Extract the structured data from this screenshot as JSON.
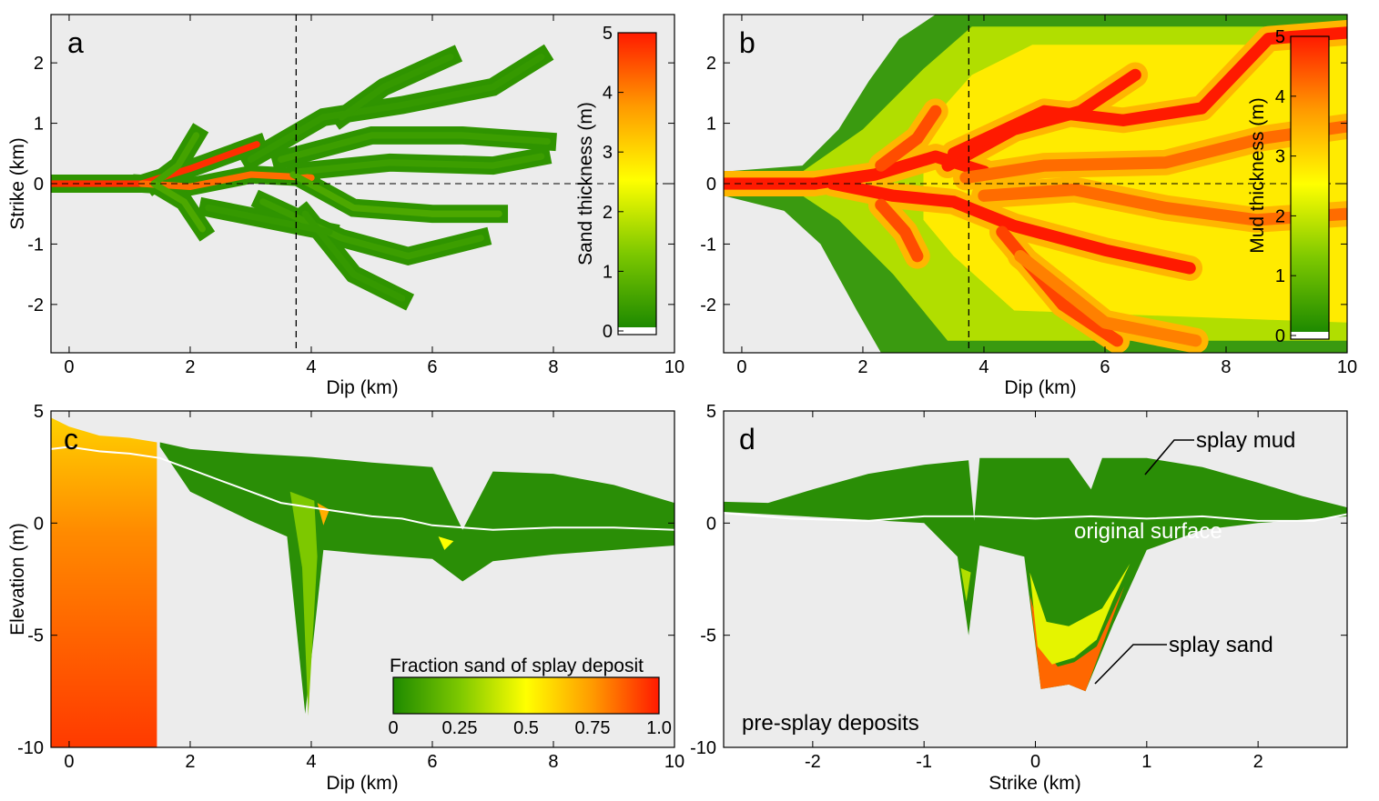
{
  "colors": {
    "background": "#ececec",
    "low": "#1e8a00",
    "mid": "#ffff00",
    "high": "#ff1a00",
    "surface_line": "#ffffff"
  },
  "chart_data": [
    {
      "type": "heatmap",
      "panel_label": "a",
      "xlabel": "Dip (km)",
      "ylabel": "Strike (km)",
      "xlim": [
        -0.3,
        10
      ],
      "ylim": [
        -2.8,
        2.8
      ],
      "xticks": [
        0,
        2,
        4,
        6,
        8,
        10
      ],
      "yticks": [
        -2,
        -1,
        0,
        1,
        2
      ],
      "colorbar": {
        "label": "Sand thickness (m)",
        "range": [
          0,
          5
        ],
        "ticks": [
          0,
          1,
          2,
          3,
          4,
          5
        ]
      },
      "crosshair": {
        "x": 3.75,
        "y": 0
      },
      "channels": [
        {
          "pts": [
            [
              -0.3,
              0
            ],
            [
              1.2,
              0
            ],
            [
              2,
              0.25
            ],
            [
              3.1,
              0.65
            ]
          ],
          "value": 4.8
        },
        {
          "pts": [
            [
              1.2,
              0
            ],
            [
              2,
              -0.05
            ],
            [
              3,
              0.15
            ],
            [
              4,
              0.1
            ]
          ],
          "value": 4.2
        },
        {
          "pts": [
            [
              1.4,
              0
            ],
            [
              1.8,
              0.3
            ],
            [
              2.1,
              0.8
            ]
          ],
          "value": 0.5
        },
        {
          "pts": [
            [
              1.4,
              0
            ],
            [
              1.9,
              -0.3
            ],
            [
              2.2,
              -0.75
            ]
          ],
          "value": 0.6
        },
        {
          "pts": [
            [
              3,
              0.4
            ],
            [
              4.2,
              1.1
            ],
            [
              5.5,
              1.3
            ],
            [
              7,
              1.6
            ],
            [
              7.8,
              2.1
            ]
          ],
          "value": 0.3
        },
        {
          "pts": [
            [
              4.5,
              1.1
            ],
            [
              5.2,
              1.6
            ],
            [
              6.3,
              2.1
            ]
          ],
          "value": 0.3
        },
        {
          "pts": [
            [
              3.5,
              0.4
            ],
            [
              5,
              0.8
            ],
            [
              6.5,
              0.8
            ],
            [
              7.9,
              0.7
            ]
          ],
          "value": 0.4
        },
        {
          "pts": [
            [
              3.8,
              0.2
            ],
            [
              5.3,
              0.35
            ],
            [
              7,
              0.3
            ],
            [
              7.8,
              0.45
            ]
          ],
          "value": 0.4
        },
        {
          "pts": [
            [
              3.7,
              0.15
            ],
            [
              4.7,
              -0.4
            ],
            [
              6,
              -0.5
            ],
            [
              7.1,
              -0.5
            ]
          ],
          "value": 0.6
        },
        {
          "pts": [
            [
              3.2,
              -0.3
            ],
            [
              4.5,
              -0.9
            ],
            [
              5.6,
              -1.2
            ],
            [
              6.8,
              -0.9
            ]
          ],
          "value": 0.4
        },
        {
          "pts": [
            [
              3.9,
              -0.5
            ],
            [
              4.7,
              -1.5
            ],
            [
              5.5,
              -1.9
            ]
          ],
          "value": 0.3
        },
        {
          "pts": [
            [
              2.3,
              -0.4
            ],
            [
              3.3,
              -0.6
            ],
            [
              4.3,
              -0.8
            ]
          ],
          "value": 0.3
        }
      ]
    },
    {
      "type": "heatmap",
      "panel_label": "b",
      "xlabel": "Dip (km)",
      "ylabel": "",
      "xlim": [
        -0.3,
        10
      ],
      "ylim": [
        -2.8,
        2.8
      ],
      "xticks": [
        0,
        2,
        4,
        6,
        8,
        10
      ],
      "yticks": [
        -2,
        -1,
        0,
        1,
        2
      ],
      "colorbar": {
        "label": "Mud thickness (m)",
        "range": [
          0,
          5
        ],
        "ticks": [
          0,
          1,
          2,
          3,
          4,
          5
        ]
      },
      "crosshair": {
        "x": 3.75,
        "y": 0
      },
      "channels": [
        {
          "pts": [
            [
              -0.3,
              0
            ],
            [
              1.2,
              0
            ],
            [
              2.2,
              0.15
            ],
            [
              3.2,
              0.45
            ],
            [
              4,
              0.2
            ]
          ],
          "value": 5
        },
        {
          "pts": [
            [
              1.5,
              0
            ],
            [
              2.5,
              -0.2
            ],
            [
              3.5,
              -0.3
            ],
            [
              4.5,
              -0.7
            ],
            [
              6,
              -1.1
            ],
            [
              7.4,
              -1.4
            ]
          ],
          "value": 5
        },
        {
          "pts": [
            [
              3.4,
              0.3
            ],
            [
              4.5,
              0.9
            ],
            [
              5.6,
              1.2
            ],
            [
              6.5,
              1.8
            ]
          ],
          "value": 5
        },
        {
          "pts": [
            [
              3.5,
              0.5
            ],
            [
              5,
              1.2
            ],
            [
              6.3,
              1.05
            ],
            [
              7.6,
              1.25
            ],
            [
              8.7,
              2.4
            ],
            [
              10,
              2.5
            ]
          ],
          "value": 5
        },
        {
          "pts": [
            [
              3.7,
              0.1
            ],
            [
              5,
              0.3
            ],
            [
              7,
              0.35
            ],
            [
              8.6,
              0.75
            ],
            [
              10,
              0.95
            ]
          ],
          "value": 4.2
        },
        {
          "pts": [
            [
              4,
              -0.2
            ],
            [
              5.5,
              -0.1
            ],
            [
              7,
              -0.4
            ],
            [
              8.5,
              -0.6
            ],
            [
              10,
              -0.5
            ]
          ],
          "value": 4.2
        },
        {
          "pts": [
            [
              4.3,
              -0.8
            ],
            [
              5.3,
              -2
            ],
            [
              6.2,
              -2.6
            ]
          ],
          "value": 4.6
        },
        {
          "pts": [
            [
              4.6,
              -1.2
            ],
            [
              6,
              -2.3
            ],
            [
              7.5,
              -2.6
            ]
          ],
          "value": 4
        },
        {
          "pts": [
            [
              2.3,
              0.3
            ],
            [
              2.9,
              0.75
            ],
            [
              3.2,
              1.2
            ]
          ],
          "value": 4.5
        },
        {
          "pts": [
            [
              2.3,
              -0.35
            ],
            [
              2.7,
              -0.8
            ],
            [
              2.9,
              -1.2
            ]
          ],
          "value": 4.5
        }
      ]
    },
    {
      "type": "heatmap",
      "panel_label": "c",
      "xlabel": "Dip (km)",
      "ylabel": "Elevation (m)",
      "xlim": [
        -0.3,
        10
      ],
      "ylim": [
        -10,
        5
      ],
      "xticks": [
        0,
        2,
        4,
        6,
        8,
        10
      ],
      "yticks": [
        -10,
        -5,
        0,
        5
      ],
      "colorbar": {
        "label": "Fraction sand of splay deposit",
        "range": [
          0,
          1
        ],
        "ticks": [
          "0",
          "0.25",
          "0.5",
          "0.75",
          "1.0"
        ]
      },
      "top_surface": [
        [
          -0.3,
          4.7
        ],
        [
          0,
          4.3
        ],
        [
          0.5,
          3.9
        ],
        [
          1,
          3.8
        ],
        [
          1.5,
          3.6
        ],
        [
          2,
          3.3
        ],
        [
          3,
          3.1
        ],
        [
          4,
          2.95
        ],
        [
          5,
          2.7
        ],
        [
          6,
          2.5
        ],
        [
          6.5,
          -0.3
        ],
        [
          7,
          2.3
        ],
        [
          8,
          2.2
        ],
        [
          9,
          1.7
        ],
        [
          10,
          0.9
        ]
      ],
      "original_surface": [
        [
          -0.3,
          3.3
        ],
        [
          0,
          3.4
        ],
        [
          0.5,
          3.2
        ],
        [
          1,
          3.1
        ],
        [
          1.5,
          2.9
        ],
        [
          2,
          2.4
        ],
        [
          2.5,
          1.9
        ],
        [
          3,
          1.4
        ],
        [
          3.5,
          0.9
        ],
        [
          4,
          0.7
        ],
        [
          4.5,
          0.5
        ],
        [
          5,
          0.3
        ],
        [
          5.5,
          0.2
        ],
        [
          6,
          -0.1
        ],
        [
          6.5,
          -0.2
        ],
        [
          7,
          -0.3
        ],
        [
          8,
          -0.2
        ],
        [
          9,
          -0.2
        ],
        [
          10,
          -0.3
        ]
      ],
      "splay_base": [
        [
          1.5,
          3.4
        ],
        [
          2,
          1.4
        ],
        [
          3,
          0.1
        ],
        [
          3.6,
          -0.6
        ],
        [
          3.9,
          -8.5
        ],
        [
          4.2,
          -1.2
        ],
        [
          5,
          -1.4
        ],
        [
          6,
          -1.6
        ],
        [
          6.5,
          -2.6
        ],
        [
          7,
          -1.7
        ],
        [
          8,
          -1.4
        ],
        [
          9,
          -1.2
        ],
        [
          10,
          -1
        ]
      ],
      "pre_splay_channel": {
        "x": [
          -0.3,
          1.45
        ],
        "base": -10
      }
    },
    {
      "type": "heatmap",
      "panel_label": "d",
      "xlabel": "Strike (km)",
      "ylabel": "",
      "xlim": [
        -2.8,
        2.8
      ],
      "ylim": [
        -10,
        5
      ],
      "xticks": [
        -2,
        -1,
        0,
        1,
        2
      ],
      "yticks": [
        -10,
        -5,
        0,
        5
      ],
      "top_surface": [
        [
          -2.8,
          0.95
        ],
        [
          -2.4,
          0.9
        ],
        [
          -2,
          1.5
        ],
        [
          -1.5,
          2.2
        ],
        [
          -1,
          2.6
        ],
        [
          -0.6,
          2.8
        ],
        [
          -0.55,
          0.1
        ],
        [
          -0.5,
          2.9
        ],
        [
          -0.2,
          2.9
        ],
        [
          0.3,
          2.9
        ],
        [
          0.5,
          1.5
        ],
        [
          0.6,
          2.9
        ],
        [
          1,
          2.9
        ],
        [
          1.5,
          2.5
        ],
        [
          2,
          1.8
        ],
        [
          2.4,
          1.2
        ],
        [
          2.8,
          0.7
        ]
      ],
      "original_surface": [
        [
          -2.8,
          0.45
        ],
        [
          -2.2,
          0.2
        ],
        [
          -1.5,
          0.1
        ],
        [
          -1,
          0.3
        ],
        [
          -0.5,
          0.3
        ],
        [
          0,
          0.2
        ],
        [
          0.5,
          0.3
        ],
        [
          1,
          0.2
        ],
        [
          1.5,
          0.3
        ],
        [
          2,
          0.1
        ],
        [
          2.5,
          0.1
        ],
        [
          2.8,
          0.4
        ]
      ],
      "splay_base": [
        [
          -2.8,
          0.5
        ],
        [
          -1,
          0
        ],
        [
          -0.7,
          -1.5
        ],
        [
          -0.6,
          -5
        ],
        [
          -0.5,
          -1
        ],
        [
          -0.1,
          -1.5
        ],
        [
          0.05,
          -7.4
        ],
        [
          0.3,
          -7.2
        ],
        [
          0.45,
          -7.5
        ],
        [
          0.7,
          -4.5
        ],
        [
          1,
          -1.2
        ],
        [
          1.5,
          -0.3
        ],
        [
          2,
          0
        ],
        [
          2.8,
          0.3
        ]
      ],
      "annotations": {
        "splay_mud": "splay mud",
        "original_surface": "original surface",
        "splay_sand": "splay sand",
        "pre_splay": "pre-splay deposits"
      }
    }
  ]
}
